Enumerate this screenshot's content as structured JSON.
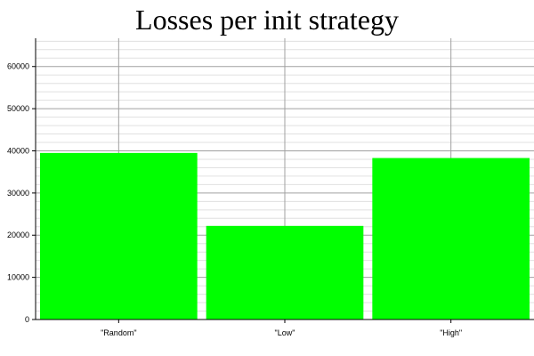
{
  "chart_data": {
    "type": "bar",
    "title": "Losses per init strategy",
    "categories": [
      "\"Random\"",
      "\"Low\"",
      "\"High\""
    ],
    "values": [
      39500,
      22200,
      38300
    ],
    "xlabel": "",
    "ylabel": "",
    "ylim": [
      0,
      66700
    ],
    "yticks": [
      0,
      10000,
      20000,
      30000,
      40000,
      50000,
      60000
    ],
    "grid": true,
    "colors": {
      "bar": "#00ff00",
      "major_grid": "#a0a0a0",
      "minor_grid": "#e0e0e0",
      "axis": "#000000"
    }
  }
}
